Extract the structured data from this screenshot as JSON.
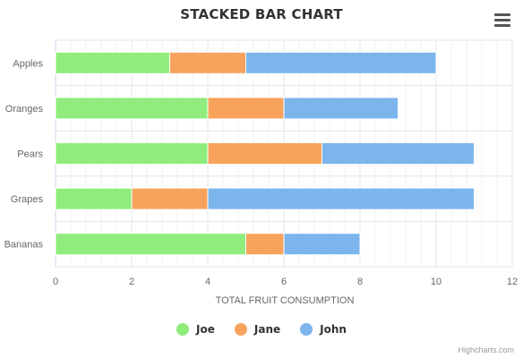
{
  "chart_data": {
    "type": "bar",
    "orientation": "horizontal",
    "stacked": true,
    "title": "STACKED BAR CHART",
    "xlabel": "TOTAL FRUIT CONSUMPTION",
    "ylabel": "",
    "categories": [
      "Apples",
      "Oranges",
      "Pears",
      "Grapes",
      "Bananas"
    ],
    "series": [
      {
        "name": "Joe",
        "color": "#90ed7d",
        "values": [
          3,
          4,
          4,
          2,
          5
        ]
      },
      {
        "name": "Jane",
        "color": "#f7a35c",
        "values": [
          2,
          2,
          3,
          2,
          1
        ]
      },
      {
        "name": "John",
        "color": "#7cb5ec",
        "values": [
          5,
          3,
          4,
          7,
          2
        ]
      }
    ],
    "xlim": [
      0,
      12
    ],
    "ticks": [
      0,
      2,
      4,
      6,
      8,
      10,
      12
    ],
    "grid": true,
    "legend_position": "bottom-center"
  },
  "credits": "Highcharts.com",
  "menu_icon": "hamburger-menu-icon"
}
